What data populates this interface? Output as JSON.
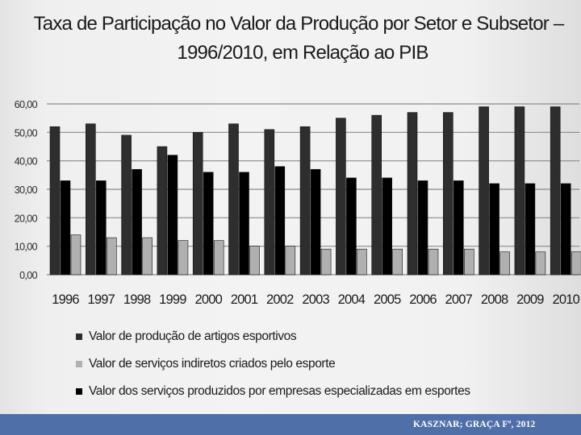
{
  "colors": {
    "producao": "#2e2e2e",
    "indiretos": "#b0b0b0",
    "especializados": "#000000",
    "footer_bg": "#4f6fa8"
  },
  "chart_data": {
    "type": "bar",
    "title_line1": "Taxa de Participação no Valor da Produção por Setor e Subsetor –",
    "title_line2": "1996/2010, em Relação ao PIB",
    "xlabel": "",
    "ylabel": "",
    "ylim": [
      0,
      60
    ],
    "yticks": [
      "0,00",
      "10,00",
      "20,00",
      "30,00",
      "40,00",
      "50,00",
      "60,00"
    ],
    "categories": [
      "1996",
      "1997",
      "1998",
      "1999",
      "2000",
      "2001",
      "2002",
      "2003",
      "2004",
      "2005",
      "2006",
      "2007",
      "2008",
      "2009",
      "2010"
    ],
    "series": [
      {
        "name": "Valor de produção de artigos esportivos",
        "key": "producao",
        "values": [
          52,
          53,
          49,
          45,
          50,
          53,
          51,
          52,
          55,
          56,
          57,
          57,
          59,
          59,
          59
        ]
      },
      {
        "name": "Valor dos serviços produzidos por empresas especializadas em esportes",
        "key": "especializados",
        "values": [
          33,
          33,
          37,
          42,
          36,
          36,
          38,
          37,
          34,
          34,
          33,
          33,
          32,
          32,
          32
        ]
      },
      {
        "name": "Valor de serviços indiretos criados pelo esporte",
        "key": "indiretos",
        "values": [
          14,
          13,
          13,
          12,
          12,
          10,
          10,
          9,
          9,
          9,
          9,
          9,
          8,
          8,
          8
        ]
      }
    ],
    "legend_order": [
      "Valor de produção de artigos esportivos",
      "Valor de serviços indiretos criados pelo esporte",
      "Valor dos serviços produzidos por empresas especializadas em esportes"
    ],
    "legend_placement": "bottom"
  },
  "footer": {
    "source": "KASZNAR; GRAÇA Fº, 2012"
  }
}
